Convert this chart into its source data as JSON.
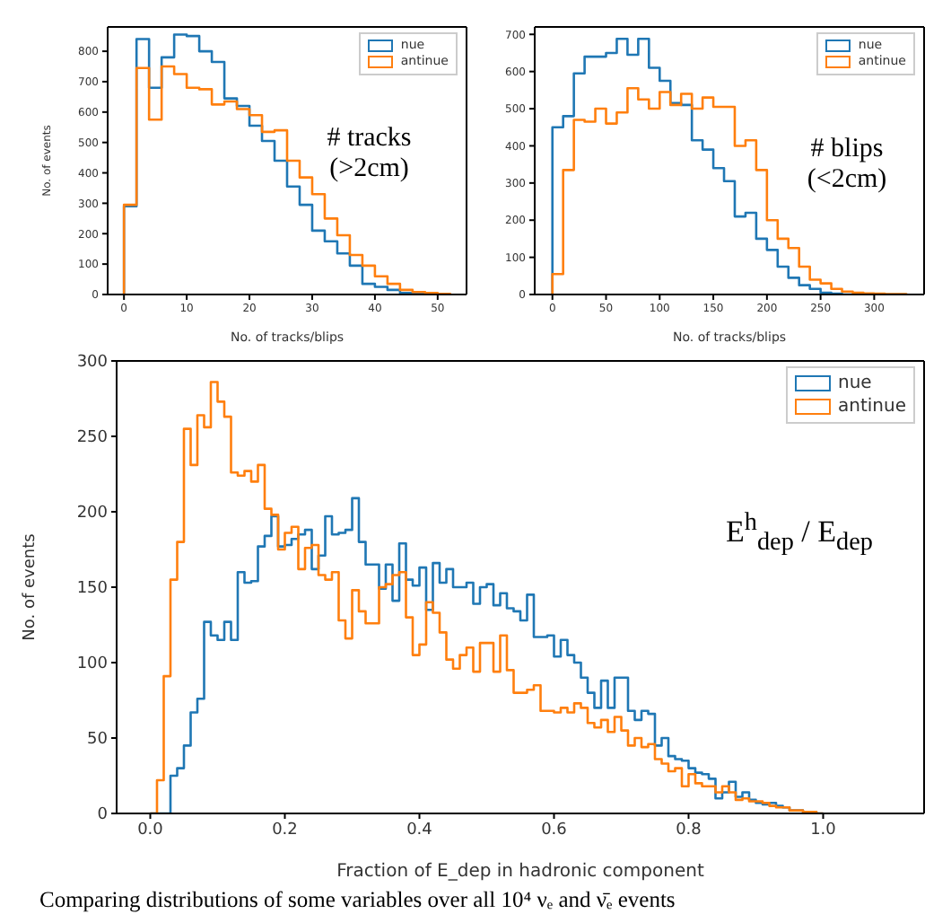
{
  "chart_data": [
    {
      "type": "histogram",
      "xlabel": "No. of tracks/blips",
      "ylabel": "No. of events",
      "annotations": [
        "# tracks (>2cm)"
      ],
      "legend": "top right",
      "bins": [
        0,
        2,
        4,
        6,
        8,
        10,
        12,
        14,
        16,
        18,
        20,
        22,
        24,
        26,
        28,
        30,
        32,
        34,
        36,
        38,
        40,
        42,
        44,
        46,
        48,
        50,
        52
      ],
      "xlim": [
        -2.6,
        54.6
      ],
      "xticks": [
        0,
        10,
        20,
        30,
        40,
        50
      ],
      "ylim": [
        0,
        880
      ],
      "yticks": [
        0,
        100,
        200,
        300,
        400,
        500,
        600,
        700,
        800
      ],
      "series": [
        {
          "name": "nue",
          "color": "#1f77b4",
          "values": [
            290,
            840,
            680,
            780,
            855,
            850,
            800,
            765,
            645,
            620,
            555,
            505,
            440,
            355,
            295,
            210,
            175,
            135,
            95,
            35,
            25,
            15,
            5,
            2,
            1,
            0
          ]
        },
        {
          "name": "antinue",
          "color": "#ff7f0e",
          "values": [
            295,
            745,
            575,
            750,
            725,
            680,
            675,
            625,
            635,
            610,
            590,
            535,
            540,
            440,
            385,
            330,
            250,
            195,
            130,
            95,
            60,
            35,
            15,
            8,
            5,
            2
          ]
        }
      ]
    },
    {
      "type": "histogram",
      "xlabel": "No. of tracks/blips",
      "annotations": [
        "# blips (<2cm)"
      ],
      "legend": "top right",
      "bins": [
        0,
        10,
        20,
        30,
        40,
        50,
        60,
        70,
        80,
        90,
        100,
        110,
        120,
        130,
        140,
        150,
        160,
        170,
        180,
        190,
        200,
        210,
        220,
        230,
        240,
        250,
        260,
        270,
        280,
        290,
        300,
        310,
        320,
        330
      ],
      "xlim": [
        -16.5,
        346.5
      ],
      "xticks": [
        0,
        50,
        100,
        150,
        200,
        250,
        300
      ],
      "ylim": [
        0,
        720
      ],
      "yticks": [
        0,
        100,
        200,
        300,
        400,
        500,
        600,
        700
      ],
      "series": [
        {
          "name": "nue",
          "color": "#1f77b4",
          "values": [
            450,
            480,
            595,
            640,
            640,
            650,
            688,
            645,
            688,
            610,
            575,
            515,
            510,
            415,
            390,
            340,
            305,
            210,
            220,
            150,
            120,
            75,
            45,
            25,
            15,
            5,
            2,
            0,
            0,
            0,
            0,
            0,
            0
          ]
        },
        {
          "name": "antinue",
          "color": "#ff7f0e",
          "values": [
            55,
            335,
            470,
            465,
            500,
            460,
            490,
            555,
            525,
            500,
            545,
            510,
            540,
            500,
            530,
            505,
            505,
            400,
            415,
            335,
            200,
            150,
            125,
            75,
            40,
            30,
            15,
            8,
            5,
            3,
            2,
            1,
            1
          ]
        }
      ]
    },
    {
      "type": "histogram",
      "xlabel": "Fraction of E_dep in hadronic component",
      "ylabel": "No. of events",
      "annotations": [
        "E$^{h}$$_{dep}$ / E$_{dep}$",
        "Comparing distributions of some variables over all 10⁴ νₑ and ν̄ₑ events"
      ],
      "legend": "top right",
      "bins": [
        0,
        0.01,
        0.02,
        0.03,
        0.04,
        0.05,
        0.06,
        0.07,
        0.08,
        0.09,
        0.1,
        0.11,
        0.12,
        0.13,
        0.14,
        0.15,
        0.16,
        0.17,
        0.18,
        0.19,
        0.2,
        0.21,
        0.22,
        0.23,
        0.24,
        0.25,
        0.26,
        0.27,
        0.28,
        0.29,
        0.3,
        0.31,
        0.32,
        0.33,
        0.34,
        0.35,
        0.36,
        0.37,
        0.38,
        0.39,
        0.4,
        0.41,
        0.42,
        0.43,
        0.44,
        0.45,
        0.46,
        0.47,
        0.48,
        0.49,
        0.5,
        0.51,
        0.52,
        0.53,
        0.54,
        0.55,
        0.56,
        0.57,
        0.58,
        0.59,
        0.6,
        0.61,
        0.62,
        0.63,
        0.64,
        0.65,
        0.66,
        0.67,
        0.68,
        0.69,
        0.7,
        0.71,
        0.72,
        0.73,
        0.74,
        0.75,
        0.76,
        0.77,
        0.78,
        0.79,
        0.8,
        0.81,
        0.82,
        0.83,
        0.84,
        0.85,
        0.86,
        0.87,
        0.88,
        0.89,
        0.9,
        0.91,
        0.92,
        0.93,
        0.94,
        0.95,
        0.96,
        0.97,
        0.98,
        0.99,
        1
      ],
      "xlim": [
        -0.05,
        1.15
      ],
      "xticks": [
        {
          "value": 0,
          "label": "0.0"
        },
        0.2,
        0.4,
        0.6,
        0.8,
        {
          "value": 1,
          "label": "1.0"
        }
      ],
      "ylim": [
        0,
        300
      ],
      "yticks": [
        0,
        50,
        100,
        150,
        200,
        250,
        300
      ],
      "series": [
        {
          "name": "nue",
          "color": "#1f77b4",
          "values": [
            0,
            0,
            0,
            25,
            30,
            45,
            67,
            76,
            127,
            118,
            115,
            127,
            115,
            160,
            153,
            154,
            177,
            184,
            197,
            177,
            178,
            182,
            185,
            188,
            162,
            171,
            197,
            185,
            186,
            188,
            209,
            180,
            165,
            165,
            149,
            165,
            141,
            179,
            155,
            151,
            163,
            135,
            166,
            153,
            162,
            150,
            150,
            153,
            139,
            150,
            152,
            138,
            146,
            136,
            134,
            128,
            145,
            117,
            117,
            118,
            104,
            115,
            105,
            100,
            90,
            80,
            70,
            88,
            70,
            90,
            90,
            68,
            62,
            68,
            66,
            45,
            50,
            38,
            36,
            35,
            30,
            27,
            26,
            23,
            10,
            14,
            21,
            11,
            14,
            9,
            7,
            6,
            7,
            5,
            4,
            2,
            2,
            1,
            1,
            0
          ]
        },
        {
          "name": "antinue",
          "color": "#ff7f0e",
          "values": [
            0,
            22,
            91,
            155,
            180,
            255,
            231,
            264,
            256,
            286,
            273,
            263,
            226,
            224,
            227,
            220,
            231,
            202,
            198,
            175,
            186,
            190,
            162,
            176,
            178,
            158,
            155,
            160,
            128,
            116,
            148,
            134,
            126,
            126,
            150,
            152,
            158,
            160,
            130,
            105,
            112,
            140,
            133,
            120,
            102,
            96,
            105,
            110,
            94,
            113,
            113,
            94,
            118,
            95,
            80,
            80,
            82,
            85,
            68,
            68,
            67,
            70,
            67,
            73,
            70,
            60,
            57,
            62,
            54,
            64,
            55,
            45,
            50,
            44,
            46,
            36,
            33,
            28,
            30,
            18,
            26,
            20,
            18,
            18,
            14,
            18,
            14,
            9,
            10,
            8,
            8,
            7,
            5,
            4,
            4,
            2,
            2,
            1,
            1,
            0
          ]
        }
      ]
    }
  ]
}
